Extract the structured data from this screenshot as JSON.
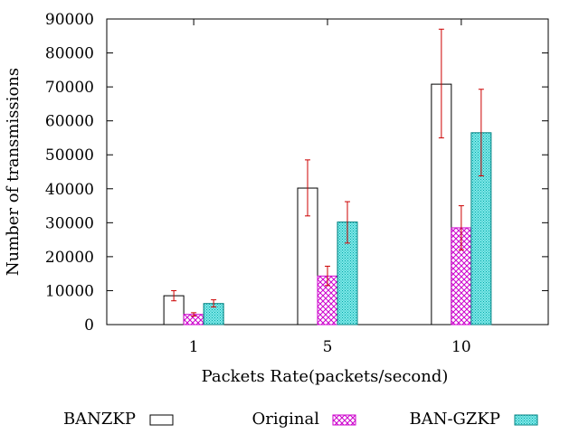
{
  "chart_data": {
    "type": "bar",
    "title": "",
    "xlabel": "Packets Rate(packets/second)",
    "ylabel": "Number of transmissions",
    "categories": [
      "1",
      "5",
      "10"
    ],
    "ylim": [
      0,
      90000
    ],
    "yticks": [
      0,
      10000,
      20000,
      30000,
      40000,
      50000,
      60000,
      70000,
      80000,
      90000
    ],
    "grid": false,
    "legend_position": "bottom",
    "series": [
      {
        "name": "BANZKP",
        "fill": "none",
        "color": "#000000",
        "values": [
          8500,
          40200,
          70800
        ],
        "error_low": [
          7000,
          32000,
          55000
        ],
        "error_high": [
          10000,
          48500,
          87000
        ]
      },
      {
        "name": "Original",
        "fill": "crosshatch",
        "color": "#cc00cc",
        "values": [
          3000,
          14300,
          28500
        ],
        "error_low": [
          2500,
          11500,
          22000
        ],
        "error_high": [
          3500,
          17200,
          35000
        ]
      },
      {
        "name": "BAN-GZKP",
        "fill": "dots",
        "color": "#00c8c8",
        "values": [
          6200,
          30200,
          56500
        ],
        "error_low": [
          5200,
          24000,
          43800
        ],
        "error_high": [
          7300,
          36200,
          69300
        ]
      }
    ],
    "error_bar_color": "#cc0000"
  }
}
